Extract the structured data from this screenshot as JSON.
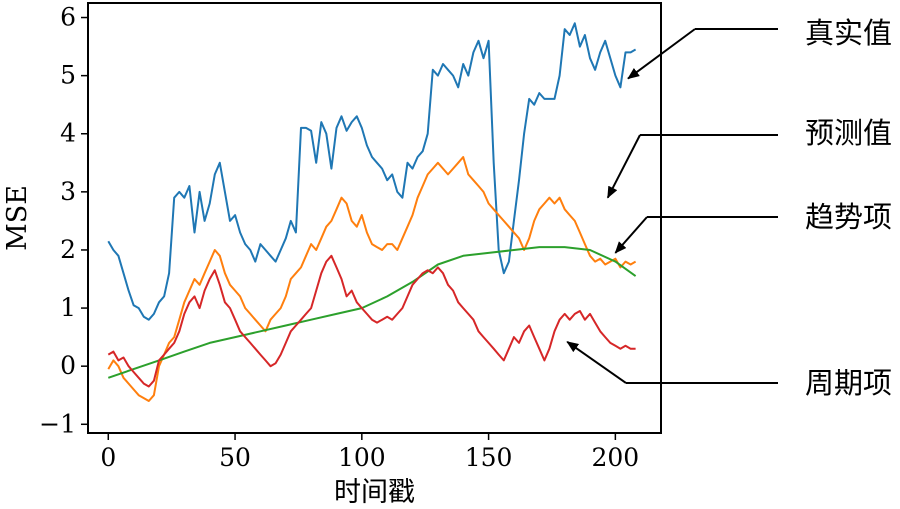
{
  "chart_data": {
    "type": "line",
    "title": "",
    "xlabel": "时间戳",
    "ylabel": "MSE",
    "xlim": [
      -8,
      218
    ],
    "ylim": [
      -1.15,
      6.25
    ],
    "xticks": [
      0,
      50,
      100,
      150,
      200
    ],
    "yticks": [
      -1,
      0,
      1,
      2,
      3,
      4,
      5,
      6
    ],
    "grid": false,
    "legend": "none",
    "series": [
      {
        "name": "真实值",
        "color": "#1f77b4",
        "x": [
          0,
          2,
          4,
          6,
          8,
          10,
          12,
          14,
          16,
          18,
          20,
          22,
          24,
          26,
          28,
          30,
          32,
          34,
          36,
          38,
          40,
          42,
          44,
          46,
          48,
          50,
          52,
          54,
          56,
          58,
          60,
          62,
          64,
          66,
          68,
          70,
          72,
          74,
          76,
          78,
          80,
          82,
          84,
          86,
          88,
          90,
          92,
          94,
          96,
          98,
          100,
          102,
          104,
          106,
          108,
          110,
          112,
          114,
          116,
          118,
          120,
          122,
          124,
          126,
          128,
          130,
          132,
          134,
          136,
          138,
          140,
          142,
          144,
          146,
          148,
          150,
          152,
          154,
          156,
          158,
          160,
          162,
          164,
          166,
          168,
          170,
          172,
          174,
          176,
          178,
          180,
          182,
          184,
          186,
          188,
          190,
          192,
          194,
          196,
          198,
          200,
          202,
          204,
          206,
          208
        ],
        "y": [
          2.15,
          2.0,
          1.9,
          1.6,
          1.3,
          1.05,
          1.0,
          0.85,
          0.8,
          0.9,
          1.1,
          1.2,
          1.6,
          2.9,
          3.0,
          2.9,
          3.1,
          2.3,
          3.0,
          2.5,
          2.8,
          3.3,
          3.5,
          3.0,
          2.5,
          2.6,
          2.3,
          2.1,
          2.0,
          1.8,
          2.1,
          2.0,
          1.9,
          1.8,
          2.0,
          2.2,
          2.5,
          2.3,
          4.1,
          4.1,
          4.05,
          3.5,
          4.2,
          4.0,
          3.4,
          4.1,
          4.3,
          4.05,
          4.2,
          4.3,
          4.1,
          3.8,
          3.6,
          3.5,
          3.4,
          3.2,
          3.3,
          3.0,
          2.9,
          3.5,
          3.4,
          3.6,
          3.7,
          4.0,
          5.1,
          5.0,
          5.2,
          5.1,
          5.0,
          4.8,
          5.2,
          5.0,
          5.4,
          5.6,
          5.3,
          5.6,
          3.5,
          2.0,
          1.6,
          1.8,
          2.5,
          3.2,
          4.0,
          4.6,
          4.5,
          4.7,
          4.6,
          4.6,
          4.6,
          5.0,
          5.8,
          5.7,
          5.9,
          5.5,
          5.7,
          5.3,
          5.1,
          5.4,
          5.6,
          5.3,
          5.0,
          4.8,
          5.4,
          5.4,
          5.45
        ]
      },
      {
        "name": "预测值",
        "color": "#ff7f0e",
        "x": [
          0,
          2,
          4,
          6,
          8,
          10,
          12,
          14,
          16,
          18,
          20,
          22,
          24,
          26,
          28,
          30,
          32,
          34,
          36,
          38,
          40,
          42,
          44,
          46,
          48,
          50,
          52,
          54,
          56,
          58,
          60,
          62,
          64,
          66,
          68,
          70,
          72,
          74,
          76,
          78,
          80,
          82,
          84,
          86,
          88,
          90,
          92,
          94,
          96,
          98,
          100,
          102,
          104,
          106,
          108,
          110,
          112,
          114,
          116,
          118,
          120,
          122,
          124,
          126,
          128,
          130,
          132,
          134,
          136,
          138,
          140,
          142,
          144,
          146,
          148,
          150,
          152,
          154,
          156,
          158,
          160,
          162,
          164,
          166,
          168,
          170,
          172,
          174,
          176,
          178,
          180,
          182,
          184,
          186,
          188,
          190,
          192,
          194,
          196,
          198,
          200,
          202,
          204,
          206,
          208
        ],
        "y": [
          -0.05,
          0.1,
          0.0,
          -0.2,
          -0.3,
          -0.4,
          -0.5,
          -0.55,
          -0.6,
          -0.5,
          0.0,
          0.2,
          0.4,
          0.5,
          0.8,
          1.1,
          1.3,
          1.5,
          1.4,
          1.6,
          1.8,
          2.0,
          1.9,
          1.6,
          1.4,
          1.3,
          1.2,
          1.0,
          0.9,
          0.8,
          0.7,
          0.6,
          0.8,
          0.9,
          1.0,
          1.2,
          1.5,
          1.6,
          1.7,
          1.9,
          2.1,
          2.0,
          2.2,
          2.4,
          2.5,
          2.7,
          2.9,
          2.8,
          2.5,
          2.4,
          2.6,
          2.3,
          2.1,
          2.05,
          2.0,
          2.1,
          2.1,
          2.0,
          2.2,
          2.4,
          2.6,
          2.9,
          3.1,
          3.3,
          3.4,
          3.5,
          3.4,
          3.3,
          3.4,
          3.5,
          3.6,
          3.3,
          3.2,
          3.1,
          3.0,
          2.8,
          2.7,
          2.6,
          2.5,
          2.4,
          2.3,
          2.2,
          2.0,
          2.2,
          2.5,
          2.7,
          2.8,
          2.9,
          2.8,
          2.9,
          2.7,
          2.6,
          2.5,
          2.3,
          2.1,
          1.9,
          1.8,
          1.85,
          1.75,
          1.8,
          1.85,
          1.7,
          1.8,
          1.75,
          1.8
        ]
      },
      {
        "name": "趋势项",
        "color": "#2ca02c",
        "x": [
          0,
          10,
          20,
          30,
          40,
          50,
          60,
          70,
          80,
          90,
          100,
          110,
          120,
          130,
          140,
          150,
          160,
          170,
          180,
          190,
          200,
          208
        ],
        "y": [
          -0.2,
          -0.05,
          0.1,
          0.25,
          0.4,
          0.5,
          0.6,
          0.7,
          0.8,
          0.9,
          1.0,
          1.2,
          1.45,
          1.75,
          1.9,
          1.95,
          2.0,
          2.05,
          2.05,
          2.0,
          1.8,
          1.55
        ]
      },
      {
        "name": "周期项",
        "color": "#d62728",
        "x": [
          0,
          2,
          4,
          6,
          8,
          10,
          12,
          14,
          16,
          18,
          20,
          22,
          24,
          26,
          28,
          30,
          32,
          34,
          36,
          38,
          40,
          42,
          44,
          46,
          48,
          50,
          52,
          54,
          56,
          58,
          60,
          62,
          64,
          66,
          68,
          70,
          72,
          74,
          76,
          78,
          80,
          82,
          84,
          86,
          88,
          90,
          92,
          94,
          96,
          98,
          100,
          102,
          104,
          106,
          108,
          110,
          112,
          114,
          116,
          118,
          120,
          122,
          124,
          126,
          128,
          130,
          132,
          134,
          136,
          138,
          140,
          142,
          144,
          146,
          148,
          150,
          152,
          154,
          156,
          158,
          160,
          162,
          164,
          166,
          168,
          170,
          172,
          174,
          176,
          178,
          180,
          182,
          184,
          186,
          188,
          190,
          192,
          194,
          196,
          198,
          200,
          202,
          204,
          206,
          208
        ],
        "y": [
          0.2,
          0.25,
          0.1,
          0.15,
          0.0,
          -0.1,
          -0.2,
          -0.3,
          -0.35,
          -0.25,
          0.1,
          0.2,
          0.3,
          0.4,
          0.6,
          0.9,
          1.1,
          1.2,
          1.0,
          1.3,
          1.5,
          1.65,
          1.4,
          1.1,
          1.0,
          0.8,
          0.6,
          0.5,
          0.4,
          0.3,
          0.2,
          0.1,
          0.0,
          0.05,
          0.2,
          0.4,
          0.6,
          0.7,
          0.8,
          0.9,
          1.0,
          1.3,
          1.6,
          1.8,
          1.9,
          1.7,
          1.5,
          1.2,
          1.3,
          1.1,
          1.0,
          0.9,
          0.8,
          0.75,
          0.8,
          0.85,
          0.8,
          0.9,
          1.0,
          1.2,
          1.4,
          1.5,
          1.6,
          1.65,
          1.6,
          1.7,
          1.6,
          1.4,
          1.3,
          1.1,
          1.0,
          0.9,
          0.8,
          0.6,
          0.5,
          0.4,
          0.3,
          0.2,
          0.1,
          0.3,
          0.5,
          0.4,
          0.6,
          0.7,
          0.5,
          0.3,
          0.1,
          0.3,
          0.6,
          0.8,
          0.9,
          0.8,
          0.9,
          0.95,
          0.8,
          0.9,
          0.75,
          0.6,
          0.5,
          0.4,
          0.35,
          0.3,
          0.35,
          0.3,
          0.3
        ]
      }
    ],
    "annotations": [
      {
        "text": "真实值",
        "target_x": 205,
        "target_y": 4.95
      },
      {
        "text": "预测值",
        "target_x": 197,
        "target_y": 2.9
      },
      {
        "text": "趋势项",
        "target_x": 200,
        "target_y": 1.95
      },
      {
        "text": "周期项",
        "target_x": 181,
        "target_y": 0.42
      }
    ]
  }
}
